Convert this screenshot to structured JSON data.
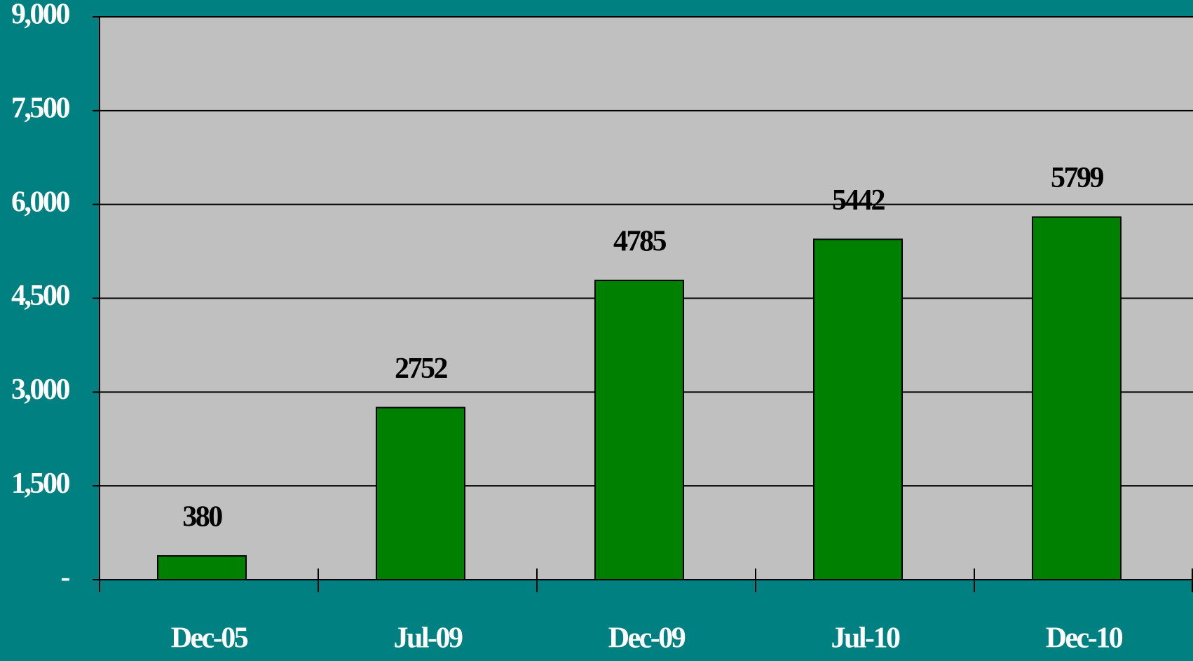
{
  "chart_data": {
    "type": "bar",
    "categories": [
      "Dec-05",
      "Jul-09",
      "Dec-09",
      "Jul-10",
      "Dec-10"
    ],
    "values": [
      380,
      2752,
      4785,
      5442,
      5799
    ],
    "color": "#008000",
    "ylim": [
      0,
      9000
    ],
    "yticks": [
      {
        "value": 0,
        "label": "-"
      },
      {
        "value": 1500,
        "label": "1,500"
      },
      {
        "value": 3000,
        "label": "3,000"
      },
      {
        "value": 4500,
        "label": "4,500"
      },
      {
        "value": 6000,
        "label": "6,000"
      },
      {
        "value": 7500,
        "label": "7,500"
      },
      {
        "value": 9000,
        "label": "9,000"
      }
    ],
    "grid": true
  }
}
